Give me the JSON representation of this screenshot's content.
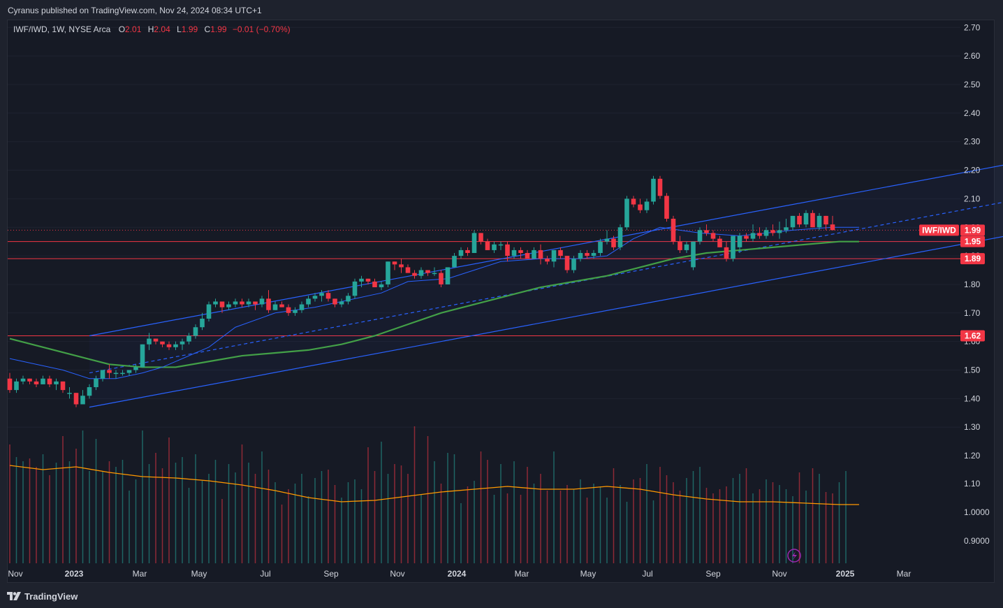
{
  "header": {
    "publisher": "Cyranus published on TradingView.com, Nov 24, 2024 08:34 UTC+1"
  },
  "legend": {
    "symbol": "IWF/IWD, 1W, NYSE Arca",
    "open_label": "O",
    "open": "2.01",
    "high_label": "H",
    "high": "2.04",
    "low_label": "L",
    "low": "1.99",
    "close_label": "C",
    "close": "1.99",
    "change": "−0.01 (−0.70%)"
  },
  "footer": {
    "brand": "TradingView",
    "icon": "tradingview-logo-icon"
  },
  "colors": {
    "background": "#161a25",
    "up": "#26a69a",
    "down": "#f23645",
    "channel": "#2962ff",
    "ma_fast": "#2962ff",
    "ma_slow": "#43a047",
    "volume_ma": "#ff9800",
    "hline": "#f23645",
    "lightning": "#9c27b0"
  },
  "chart_data": {
    "type": "candlestick",
    "symbol": "IWF/IWD",
    "timeframe": "1W",
    "y_axis_ticks": [
      "2.70",
      "2.60",
      "2.50",
      "2.40",
      "2.30",
      "2.20",
      "2.10",
      "2.00",
      "1.90",
      "1.80",
      "1.70",
      "1.60",
      "1.50",
      "1.40",
      "1.30"
    ],
    "x_axis_ticks": [
      "Nov",
      "2023",
      "Mar",
      "May",
      "Jul",
      "Sep",
      "Nov",
      "2024",
      "Mar",
      "May",
      "Jul",
      "Sep",
      "Nov",
      "2025",
      "Mar"
    ],
    "last_price_tag": {
      "name": "IWF/IWD",
      "value": "1.99"
    },
    "horizontal_levels": [
      {
        "label": "1.95",
        "value": 1.95
      },
      {
        "label": "1.89",
        "value": 1.89
      },
      {
        "label": "1.62",
        "value": 1.62
      }
    ],
    "candles": [
      [
        1.47,
        1.49,
        1.42,
        1.43
      ],
      [
        1.43,
        1.47,
        1.42,
        1.46
      ],
      [
        1.46,
        1.48,
        1.45,
        1.47
      ],
      [
        1.47,
        1.47,
        1.45,
        1.46
      ],
      [
        1.46,
        1.47,
        1.44,
        1.45
      ],
      [
        1.45,
        1.48,
        1.45,
        1.47
      ],
      [
        1.47,
        1.48,
        1.44,
        1.45
      ],
      [
        1.45,
        1.47,
        1.43,
        1.46
      ],
      [
        1.46,
        1.46,
        1.42,
        1.43
      ],
      [
        1.42,
        1.44,
        1.4,
        1.42
      ],
      [
        1.42,
        1.42,
        1.37,
        1.38
      ],
      [
        1.38,
        1.43,
        1.38,
        1.41
      ],
      [
        1.41,
        1.45,
        1.4,
        1.44
      ],
      [
        1.44,
        1.48,
        1.43,
        1.47
      ],
      [
        1.47,
        1.5,
        1.46,
        1.5
      ],
      [
        1.5,
        1.52,
        1.47,
        1.49
      ],
      [
        1.49,
        1.5,
        1.47,
        1.49
      ],
      [
        1.49,
        1.5,
        1.48,
        1.49
      ],
      [
        1.49,
        1.5,
        1.48,
        1.5
      ],
      [
        1.5,
        1.52,
        1.49,
        1.51
      ],
      [
        1.51,
        1.59,
        1.51,
        1.59
      ],
      [
        1.59,
        1.63,
        1.57,
        1.61
      ],
      [
        1.61,
        1.61,
        1.59,
        1.6
      ],
      [
        1.6,
        1.6,
        1.58,
        1.59
      ],
      [
        1.59,
        1.6,
        1.57,
        1.58
      ],
      [
        1.58,
        1.6,
        1.57,
        1.59
      ],
      [
        1.59,
        1.61,
        1.57,
        1.6
      ],
      [
        1.6,
        1.63,
        1.59,
        1.62
      ],
      [
        1.62,
        1.66,
        1.61,
        1.65
      ],
      [
        1.65,
        1.7,
        1.64,
        1.68
      ],
      [
        1.68,
        1.74,
        1.67,
        1.73
      ],
      [
        1.73,
        1.75,
        1.72,
        1.74
      ],
      [
        1.74,
        1.74,
        1.7,
        1.72
      ],
      [
        1.72,
        1.74,
        1.71,
        1.73
      ],
      [
        1.73,
        1.75,
        1.72,
        1.74
      ],
      [
        1.74,
        1.75,
        1.72,
        1.73
      ],
      [
        1.73,
        1.75,
        1.72,
        1.74
      ],
      [
        1.74,
        1.74,
        1.71,
        1.73
      ],
      [
        1.73,
        1.76,
        1.72,
        1.75
      ],
      [
        1.75,
        1.78,
        1.7,
        1.71
      ],
      [
        1.71,
        1.74,
        1.71,
        1.73
      ],
      [
        1.73,
        1.74,
        1.72,
        1.72
      ],
      [
        1.72,
        1.73,
        1.69,
        1.7
      ],
      [
        1.7,
        1.72,
        1.69,
        1.71
      ],
      [
        1.71,
        1.74,
        1.7,
        1.73
      ],
      [
        1.73,
        1.76,
        1.72,
        1.75
      ],
      [
        1.75,
        1.77,
        1.74,
        1.76
      ],
      [
        1.76,
        1.78,
        1.74,
        1.77
      ],
      [
        1.77,
        1.78,
        1.74,
        1.75
      ],
      [
        1.75,
        1.75,
        1.72,
        1.73
      ],
      [
        1.73,
        1.75,
        1.72,
        1.74
      ],
      [
        1.74,
        1.77,
        1.73,
        1.76
      ],
      [
        1.76,
        1.82,
        1.75,
        1.81
      ],
      [
        1.81,
        1.83,
        1.79,
        1.82
      ],
      [
        1.82,
        1.82,
        1.8,
        1.81
      ],
      [
        1.81,
        1.82,
        1.79,
        1.79
      ],
      [
        1.79,
        1.81,
        1.78,
        1.8
      ],
      [
        1.8,
        1.88,
        1.79,
        1.88
      ],
      [
        1.88,
        1.88,
        1.85,
        1.87
      ],
      [
        1.87,
        1.89,
        1.84,
        1.86
      ],
      [
        1.86,
        1.87,
        1.84,
        1.84
      ],
      [
        1.84,
        1.85,
        1.82,
        1.83
      ],
      [
        1.83,
        1.86,
        1.82,
        1.85
      ],
      [
        1.85,
        1.85,
        1.83,
        1.84
      ],
      [
        1.84,
        1.86,
        1.83,
        1.84
      ],
      [
        1.84,
        1.85,
        1.79,
        1.8
      ],
      [
        1.8,
        1.86,
        1.8,
        1.86
      ],
      [
        1.86,
        1.91,
        1.86,
        1.9
      ],
      [
        1.9,
        1.93,
        1.89,
        1.92
      ],
      [
        1.92,
        1.93,
        1.9,
        1.91
      ],
      [
        1.91,
        1.99,
        1.91,
        1.98
      ],
      [
        1.98,
        1.98,
        1.94,
        1.95
      ],
      [
        1.95,
        1.96,
        1.92,
        1.92
      ],
      [
        1.92,
        1.95,
        1.91,
        1.94
      ],
      [
        1.94,
        1.95,
        1.92,
        1.94
      ],
      [
        1.94,
        1.95,
        1.88,
        1.9
      ],
      [
        1.9,
        1.93,
        1.89,
        1.92
      ],
      [
        1.92,
        1.93,
        1.89,
        1.91
      ],
      [
        1.91,
        1.92,
        1.89,
        1.89
      ],
      [
        1.89,
        1.93,
        1.89,
        1.92
      ],
      [
        1.92,
        1.94,
        1.87,
        1.89
      ],
      [
        1.89,
        1.9,
        1.87,
        1.88
      ],
      [
        1.88,
        1.92,
        1.86,
        1.92
      ],
      [
        1.92,
        1.93,
        1.89,
        1.9
      ],
      [
        1.9,
        1.9,
        1.84,
        1.85
      ],
      [
        1.85,
        1.9,
        1.84,
        1.89
      ],
      [
        1.89,
        1.92,
        1.88,
        1.91
      ],
      [
        1.91,
        1.92,
        1.89,
        1.9
      ],
      [
        1.9,
        1.92,
        1.89,
        1.91
      ],
      [
        1.91,
        1.96,
        1.9,
        1.95
      ],
      [
        1.95,
        1.99,
        1.94,
        1.96
      ],
      [
        1.96,
        1.97,
        1.92,
        1.93
      ],
      [
        1.93,
        2.01,
        1.92,
        2.0
      ],
      [
        2.0,
        2.11,
        1.99,
        2.1
      ],
      [
        2.1,
        2.11,
        2.07,
        2.08
      ],
      [
        2.08,
        2.1,
        2.05,
        2.06
      ],
      [
        2.06,
        2.1,
        2.05,
        2.09
      ],
      [
        2.09,
        2.18,
        2.08,
        2.17
      ],
      [
        2.17,
        2.18,
        2.1,
        2.11
      ],
      [
        2.11,
        2.12,
        2.02,
        2.03
      ],
      [
        2.03,
        2.04,
        1.94,
        1.95
      ],
      [
        1.95,
        1.97,
        1.91,
        1.92
      ],
      [
        1.92,
        1.95,
        1.91,
        1.94
      ],
      [
        1.86,
        1.95,
        1.85,
        1.95
      ],
      [
        1.95,
        2.0,
        1.94,
        1.99
      ],
      [
        1.99,
        2.01,
        1.97,
        1.98
      ],
      [
        1.98,
        1.99,
        1.95,
        1.96
      ],
      [
        1.96,
        1.97,
        1.93,
        1.93
      ],
      [
        1.93,
        1.95,
        1.88,
        1.89
      ],
      [
        1.89,
        1.97,
        1.88,
        1.97
      ],
      [
        1.93,
        1.98,
        1.91,
        1.97
      ],
      [
        1.97,
        1.98,
        1.95,
        1.96
      ],
      [
        1.96,
        2.01,
        1.95,
        1.98
      ],
      [
        1.98,
        2.0,
        1.96,
        1.97
      ],
      [
        1.97,
        2.0,
        1.96,
        1.99
      ],
      [
        1.99,
        2.01,
        1.97,
        1.98
      ],
      [
        1.98,
        2.02,
        1.96,
        1.99
      ],
      [
        1.99,
        2.03,
        1.98,
        2.0
      ],
      [
        2.0,
        2.04,
        1.99,
        2.04
      ],
      [
        2.04,
        2.05,
        2.0,
        2.01
      ],
      [
        2.01,
        2.06,
        2.0,
        2.05
      ],
      [
        2.05,
        2.06,
        2.0,
        2.0
      ],
      [
        2.0,
        2.05,
        1.99,
        2.04
      ],
      [
        2.04,
        2.04,
        1.99,
        2.01
      ],
      [
        2.01,
        2.04,
        1.99,
        1.99
      ]
    ],
    "ma_fast": [
      [
        0,
        1.54
      ],
      [
        8,
        1.5
      ],
      [
        12,
        1.47
      ],
      [
        16,
        1.47
      ],
      [
        20,
        1.49
      ],
      [
        23,
        1.51
      ],
      [
        30,
        1.58
      ],
      [
        34,
        1.65
      ],
      [
        40,
        1.7
      ],
      [
        46,
        1.72
      ],
      [
        52,
        1.75
      ],
      [
        56,
        1.77
      ],
      [
        60,
        1.81
      ],
      [
        66,
        1.82
      ],
      [
        70,
        1.85
      ],
      [
        74,
        1.88
      ],
      [
        80,
        1.89
      ],
      [
        86,
        1.89
      ],
      [
        90,
        1.9
      ],
      [
        94,
        1.96
      ],
      [
        98,
        2.0
      ],
      [
        101,
        1.99
      ],
      [
        104,
        1.98
      ],
      [
        110,
        1.97
      ],
      [
        118,
        1.99
      ],
      [
        124,
        2.0
      ],
      [
        128,
        2.0
      ]
    ],
    "ma_slow": [
      [
        0,
        1.61
      ],
      [
        5,
        1.58
      ],
      [
        10,
        1.55
      ],
      [
        15,
        1.52
      ],
      [
        20,
        1.51
      ],
      [
        25,
        1.51
      ],
      [
        30,
        1.53
      ],
      [
        35,
        1.55
      ],
      [
        40,
        1.56
      ],
      [
        45,
        1.57
      ],
      [
        50,
        1.59
      ],
      [
        55,
        1.62
      ],
      [
        60,
        1.66
      ],
      [
        65,
        1.7
      ],
      [
        70,
        1.73
      ],
      [
        75,
        1.76
      ],
      [
        80,
        1.79
      ],
      [
        85,
        1.81
      ],
      [
        90,
        1.83
      ],
      [
        95,
        1.86
      ],
      [
        100,
        1.89
      ],
      [
        105,
        1.91
      ],
      [
        110,
        1.92
      ],
      [
        115,
        1.93
      ],
      [
        120,
        1.94
      ],
      [
        125,
        1.95
      ],
      [
        128,
        1.95
      ]
    ],
    "channel": {
      "upper": [
        [
          12,
          1.62
        ],
        [
          171,
          2.31
        ]
      ],
      "middle": [
        [
          12,
          1.49
        ],
        [
          171,
          2.18
        ]
      ],
      "lower": [
        [
          12,
          1.37
        ],
        [
          171,
          2.06
        ]
      ]
    },
    "volume_scale": {
      "ticks": [
        "1.20",
        "1.10",
        "1.0000",
        "0.9000"
      ]
    },
    "volume": [
      0.85,
      0.76,
      0.73,
      0.75,
      0.69,
      0.78,
      0.63,
      0.72,
      0.91,
      0.73,
      0.82,
      0.95,
      0.66,
      0.89,
      0.66,
      0.73,
      0.69,
      0.74,
      0.52,
      0.6,
      0.95,
      0.71,
      0.79,
      0.68,
      0.9,
      0.72,
      0.76,
      0.54,
      0.78,
      0.59,
      0.64,
      0.74,
      0.46,
      0.71,
      0.65,
      0.85,
      0.72,
      0.64,
      0.8,
      0.67,
      0.58,
      0.42,
      0.53,
      0.57,
      0.64,
      0.48,
      0.61,
      0.66,
      0.67,
      0.56,
      0.47,
      0.58,
      0.6,
      0.53,
      0.83,
      0.66,
      0.87,
      0.64,
      0.71,
      0.7,
      0.64,
      0.98,
      0.49,
      0.91,
      0.73,
      0.57,
      0.79,
      0.78,
      0.43,
      0.55,
      0.59,
      0.8,
      0.74,
      0.49,
      0.71,
      0.5,
      0.73,
      0.49,
      0.69,
      0.57,
      0.64,
      0.52,
      0.8,
      0.52,
      0.56,
      0.53,
      0.6,
      0.47,
      0.57,
      0.55,
      0.47,
      0.68,
      0.56,
      0.44,
      0.6,
      0.61,
      0.71,
      0.45,
      0.69,
      0.63,
      0.58,
      0.52,
      0.61,
      0.66,
      0.69,
      0.54,
      0.5,
      0.53,
      0.55,
      0.61,
      0.64,
      0.68,
      0.5,
      0.53,
      0.6,
      0.58,
      0.56,
      0.53,
      0.48,
      0.65,
      0.52,
      0.68,
      0.64,
      0.51,
      0.5,
      0.58,
      0.66
    ],
    "volume_ma": [
      [
        0,
        0.7
      ],
      [
        5,
        0.67
      ],
      [
        10,
        0.69
      ],
      [
        15,
        0.65
      ],
      [
        20,
        0.62
      ],
      [
        25,
        0.61
      ],
      [
        30,
        0.59
      ],
      [
        35,
        0.56
      ],
      [
        40,
        0.52
      ],
      [
        45,
        0.47
      ],
      [
        50,
        0.44
      ],
      [
        55,
        0.45
      ],
      [
        60,
        0.48
      ],
      [
        65,
        0.51
      ],
      [
        70,
        0.53
      ],
      [
        75,
        0.55
      ],
      [
        80,
        0.53
      ],
      [
        85,
        0.53
      ],
      [
        90,
        0.55
      ],
      [
        95,
        0.53
      ],
      [
        100,
        0.49
      ],
      [
        105,
        0.46
      ],
      [
        110,
        0.44
      ],
      [
        115,
        0.44
      ],
      [
        120,
        0.43
      ],
      [
        125,
        0.42
      ],
      [
        128,
        0.42
      ]
    ]
  }
}
